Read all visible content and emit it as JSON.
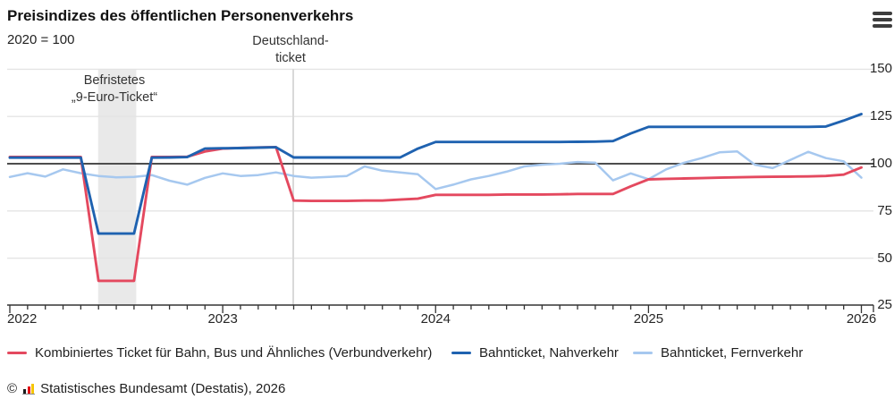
{
  "header": {
    "title": "Preisindizes des öffentlichen Personenverkehrs",
    "subtitle": "2020 = 100"
  },
  "annotations": {
    "nine_euro": {
      "line1": "Befristetes",
      "line2": "„9-Euro-Ticket“"
    },
    "dticket": {
      "line1": "Deutschland-",
      "line2": "ticket"
    }
  },
  "chart_data": {
    "type": "line",
    "title": "Preisindizes des öffentlichen Personenverkehrs",
    "index_note": "2020 = 100",
    "x_unit": "month",
    "x_start": "2022-01",
    "x_end": "2026-01",
    "x_tick_labels": [
      "2022",
      "2023",
      "2024",
      "2025",
      "2026"
    ],
    "x_tick_month_indices": [
      0,
      12,
      24,
      36,
      48
    ],
    "y_ticks": [
      25,
      50,
      75,
      100,
      125,
      150
    ],
    "ylim": [
      25,
      150
    ],
    "baseline_value": 100,
    "grid": "horizontal",
    "legend_position": "bottom",
    "series": [
      {
        "name": "Kombiniertes Ticket für Bahn, Bus und Ähnliches (Verbundverkehr)",
        "color": "#e4495f",
        "values": [
          103.6,
          103.6,
          103.6,
          103.6,
          103.6,
          38,
          38,
          38,
          103.6,
          103.6,
          103.7,
          106.5,
          108,
          108.4,
          108.6,
          108.8,
          80.5,
          80.3,
          80.3,
          80.3,
          80.5,
          80.5,
          81,
          81.5,
          83.5,
          83.5,
          83.5,
          83.5,
          83.7,
          83.7,
          83.7,
          83.8,
          84,
          84,
          84,
          88,
          91.7,
          92,
          92.2,
          92.4,
          92.6,
          92.8,
          93,
          93.1,
          93.2,
          93.3,
          93.5,
          94.2,
          98
        ]
      },
      {
        "name": "Bahnticket, Nahverkehr",
        "color": "#1f62b0",
        "values": [
          103.2,
          103.2,
          103.2,
          103.2,
          103.2,
          63,
          63,
          63,
          103.2,
          103.3,
          103.5,
          108,
          108.2,
          108.3,
          108.5,
          108.7,
          103.3,
          103.3,
          103.3,
          103.3,
          103.3,
          103.3,
          103.3,
          108,
          111.5,
          111.5,
          111.5,
          111.5,
          111.5,
          111.5,
          111.5,
          111.5,
          111.6,
          111.7,
          112,
          116,
          119.5,
          119.5,
          119.5,
          119.5,
          119.5,
          119.5,
          119.5,
          119.5,
          119.5,
          119.5,
          119.7,
          122.8,
          126.3
        ]
      },
      {
        "name": "Bahnticket, Fernverkehr",
        "color": "#a6c8ef",
        "values": [
          93,
          95,
          93.2,
          97,
          95,
          93.5,
          92.8,
          93,
          94,
          91,
          88.9,
          92.5,
          94.9,
          93.5,
          94,
          95.4,
          93.5,
          92.6,
          93,
          93.5,
          98.6,
          96.3,
          95.4,
          94.4,
          86.6,
          88.9,
          91.7,
          93.5,
          95.8,
          98.6,
          99.5,
          100,
          100.9,
          100.5,
          91.2,
          94.9,
          91.8,
          97,
          100.5,
          103,
          106,
          106.5,
          99.5,
          97.7,
          102,
          106.3,
          103,
          101.3,
          92.6
        ]
      }
    ],
    "events": [
      {
        "type": "band",
        "label": "Befristetes „9-Euro-Ticket“",
        "from_month_index": 5,
        "to_month_index": 7,
        "color": "#e9e9e9"
      },
      {
        "type": "line",
        "label": "Deutschlandticket",
        "month_index": 16,
        "color": "#d9d9d9"
      }
    ],
    "colors": {
      "gridline": "#e4e4e4",
      "baseline": "#4d4d4d",
      "axis": "#333333"
    }
  },
  "legend": [
    {
      "label": "Kombiniertes Ticket für Bahn, Bus und Ähnliches (Verbundverkehr)",
      "color": "#e4495f"
    },
    {
      "label": "Bahnticket, Nahverkehr",
      "color": "#1f62b0"
    },
    {
      "label": "Bahnticket, Fernverkehr",
      "color": "#a6c8ef"
    }
  ],
  "footer": {
    "copyright": "©",
    "source_text": "Statistisches Bundesamt (Destatis), 2026",
    "logo": "destatis-bars-icon",
    "logo_colors": {
      "bar1": "#1a1a1a",
      "bar2": "#e30613",
      "bar3": "#f6c500"
    }
  }
}
